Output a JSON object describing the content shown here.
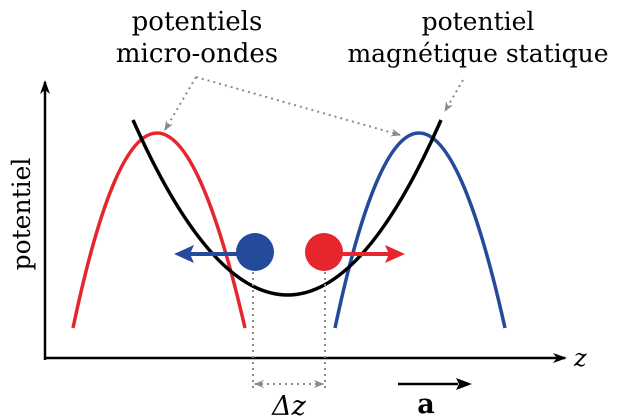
{
  "labels": {
    "microwave_line1": "potentiels",
    "microwave_line2": "micro-ondes",
    "static_line1": "potentiel",
    "static_line2": "magnétique statique",
    "y_axis": "potentiel",
    "x_axis": "z",
    "separation": "Δz",
    "acceleration": "a"
  },
  "colors": {
    "red": "#e5262d",
    "blue": "#244a9c",
    "black": "#000000",
    "gray": "#8a8a8a"
  }
}
